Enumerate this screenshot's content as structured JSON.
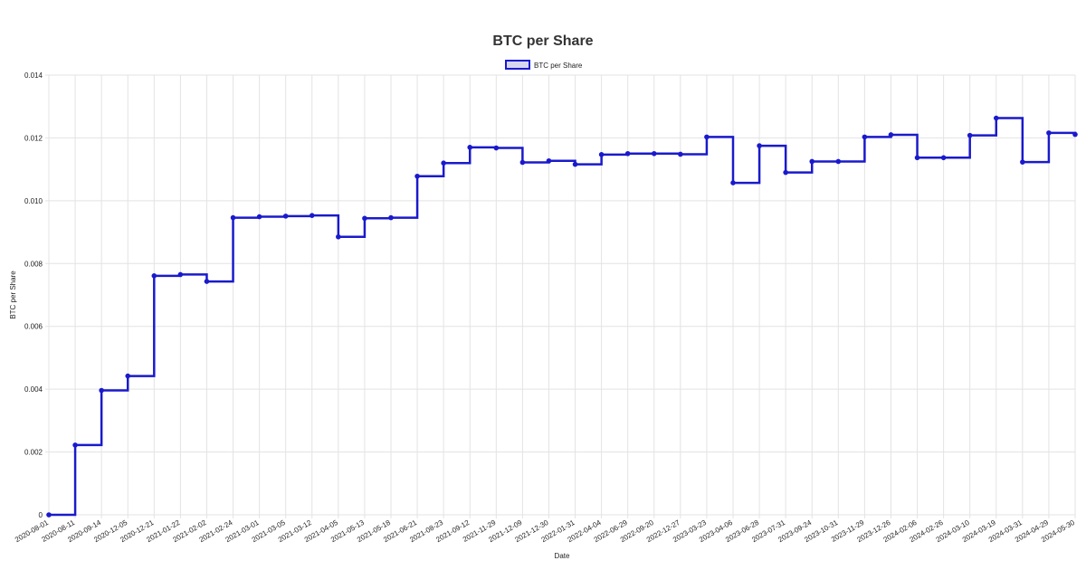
{
  "chart_data": {
    "type": "line",
    "stepped": true,
    "title": "BTC per Share",
    "xlabel": "Date",
    "ylabel": "BTC per Share",
    "ylim": [
      0,
      0.014
    ],
    "yticks": [
      "0",
      "0.002",
      "0.004",
      "0.006",
      "0.008",
      "0.010",
      "0.012",
      "0.014"
    ],
    "grid": true,
    "legend": "top-center",
    "series_color": "#1a1acc",
    "legend_fill": "#d6d6f0",
    "categories": [
      "2020-08-01",
      "2020-08-11",
      "2020-09-14",
      "2020-12-05",
      "2020-12-21",
      "2021-01-22",
      "2021-02-02",
      "2021-02-24",
      "2021-03-01",
      "2021-03-05",
      "2021-03-12",
      "2021-04-05",
      "2021-05-13",
      "2021-05-18",
      "2021-06-21",
      "2021-08-23",
      "2021-09-12",
      "2021-11-29",
      "2021-12-09",
      "2021-12-30",
      "2022-01-31",
      "2022-04-04",
      "2022-06-29",
      "2022-09-20",
      "2022-12-27",
      "2023-03-23",
      "2023-04-06",
      "2023-06-28",
      "2023-07-31",
      "2023-09-24",
      "2023-10-31",
      "2023-11-29",
      "2023-12-26",
      "2024-02-06",
      "2024-02-26",
      "2024-03-10",
      "2024-03-19",
      "2024-03-31",
      "2024-04-29",
      "2024-05-30"
    ],
    "series": [
      {
        "name": "BTC per Share",
        "values": [
          0.0,
          0.00222,
          0.00396,
          0.00442,
          0.00761,
          0.00765,
          0.00743,
          0.00946,
          0.00949,
          0.00951,
          0.00953,
          0.00885,
          0.00944,
          0.00946,
          0.01078,
          0.0112,
          0.0117,
          0.01168,
          0.01122,
          0.01127,
          0.01116,
          0.01147,
          0.0115,
          0.0115,
          0.01148,
          0.01203,
          0.01057,
          0.01175,
          0.0109,
          0.01125,
          0.01125,
          0.01203,
          0.0121,
          0.01137,
          0.01137,
          0.01208,
          0.01263,
          0.01123,
          0.01216,
          0.01211
        ]
      }
    ]
  }
}
